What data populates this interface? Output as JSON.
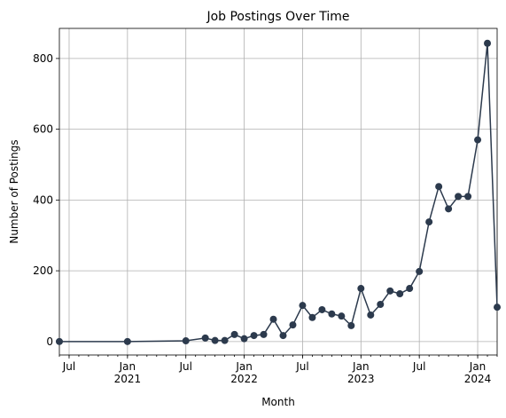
{
  "chart_data": {
    "type": "line",
    "title": "Job Postings Over Time",
    "x_label": "Month",
    "y_label": "Number of Postings",
    "x": [
      "2020-06",
      "2021-01",
      "2021-07",
      "2021-09",
      "2021-10",
      "2021-11",
      "2021-12",
      "2022-01",
      "2022-02",
      "2022-03",
      "2022-04",
      "2022-05",
      "2022-06",
      "2022-07",
      "2022-08",
      "2022-09",
      "2022-10",
      "2022-11",
      "2022-12",
      "2023-01",
      "2023-02",
      "2023-03",
      "2023-04",
      "2023-05",
      "2023-06",
      "2023-07",
      "2023-08",
      "2023-09",
      "2023-10",
      "2023-11",
      "2023-12",
      "2024-01",
      "2024-02",
      "2024-03"
    ],
    "series": [
      {
        "name": "Job Postings",
        "color": "#2c3a4d",
        "values": [
          0,
          0,
          2,
          10,
          3,
          3,
          20,
          8,
          17,
          20,
          63,
          17,
          47,
          102,
          68,
          90,
          78,
          72,
          45,
          150,
          75,
          105,
          143,
          135,
          150,
          198,
          338,
          438,
          375,
          410,
          410,
          570,
          843,
          97
        ]
      }
    ],
    "xlim": [
      "2020-06",
      "2024-03"
    ],
    "xticks": [
      {
        "value": "2020-07",
        "label": "Jul"
      },
      {
        "value": "2021-01",
        "label": "Jan\n2021"
      },
      {
        "value": "2021-07",
        "label": "Jul"
      },
      {
        "value": "2022-01",
        "label": "Jan\n2022"
      },
      {
        "value": "2022-07",
        "label": "Jul"
      },
      {
        "value": "2023-01",
        "label": "Jan\n2023"
      },
      {
        "value": "2023-07",
        "label": "Jul"
      },
      {
        "value": "2024-01",
        "label": "Jan\n2024"
      }
    ],
    "ylim": [
      -38,
      885
    ],
    "yticks": [
      0,
      200,
      400,
      600,
      800
    ],
    "grid": true
  }
}
